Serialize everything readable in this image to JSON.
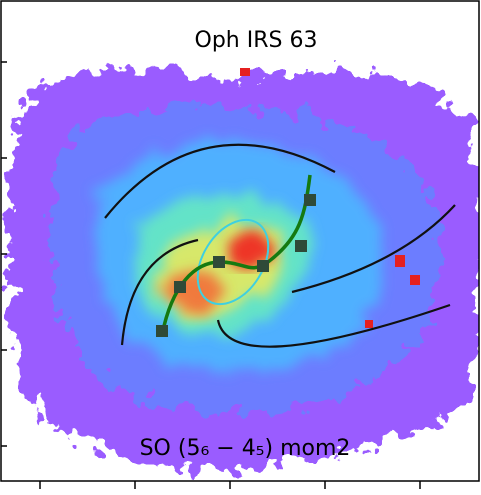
{
  "panel": {
    "title": "Oph IRS 63",
    "label": "SO (5₆ − 4₅)  mom2"
  }
}
